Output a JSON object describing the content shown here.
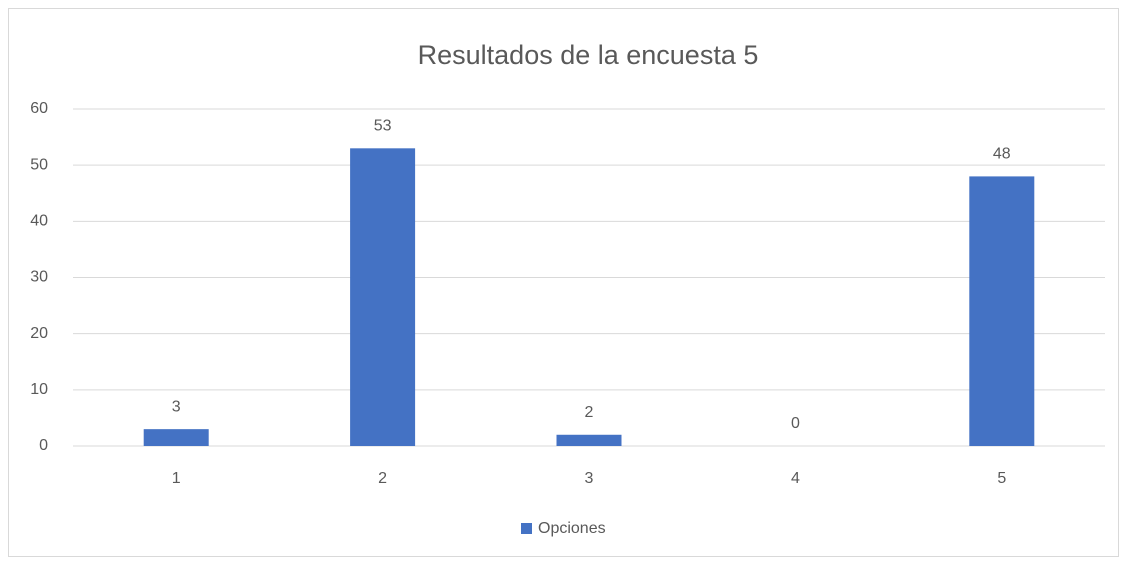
{
  "chart_data": {
    "type": "bar",
    "title": "Resultados de la encuesta 5",
    "categories": [
      "1",
      "2",
      "3",
      "4",
      "5"
    ],
    "series": [
      {
        "name": "Opciones",
        "color": "#4472c4",
        "values": [
          3,
          53,
          2,
          0,
          48
        ]
      }
    ],
    "ylim": [
      0,
      60
    ],
    "yticks": [
      0,
      10,
      20,
      30,
      40,
      50,
      60
    ],
    "grid": true,
    "legend": "bottom"
  }
}
